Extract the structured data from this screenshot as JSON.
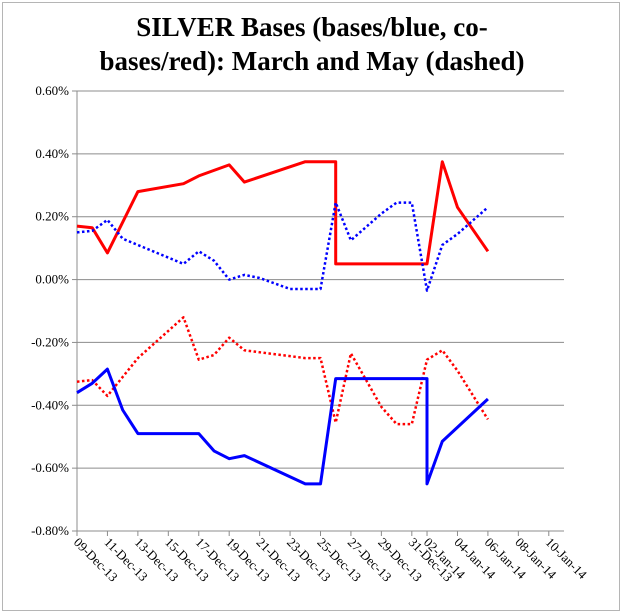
{
  "chart_data": {
    "type": "line",
    "title_lines": [
      "SILVER Bases (bases/blue, co-",
      "bases/red): March and May (dashed)"
    ],
    "x_tick_labels": [
      "09-Dec-13",
      "11-Dec-13",
      "13-Dec-13",
      "15-Dec-13",
      "17-Dec-13",
      "19-Dec-13",
      "21-Dec-13",
      "23-Dec-13",
      "25-Dec-13",
      "27-Dec-13",
      "29-Dec-13",
      "31-Dec-13",
      "02-Jan-14",
      "04-Jan-14",
      "06-Jan-14",
      "08-Jan-14",
      "10-Jan-14"
    ],
    "x_range_days": [
      0,
      32
    ],
    "y_tick_labels": [
      "0.60%",
      "0.40%",
      "0.20%",
      "0.00%",
      "-0.20%",
      "-0.40%",
      "-0.60%",
      "-0.80%"
    ],
    "ylim": [
      -0.8,
      0.6
    ],
    "y_ticks": [
      0.6,
      0.4,
      0.2,
      0.0,
      -0.2,
      -0.4,
      -0.6,
      -0.8
    ],
    "grid": "horizontal",
    "legend": "none",
    "series": [
      {
        "color": "#ff0000",
        "style": "solid",
        "x": [
          "09-Dec-13",
          "10-Dec-13",
          "11-Dec-13",
          "13-Dec-13",
          "16-Dec-13",
          "17-Dec-13",
          "19-Dec-13",
          "20-Dec-13",
          "24-Dec-13",
          "26-Dec-13",
          "26-Dec-13",
          "02-Jan-14",
          "03-Jan-14",
          "04-Jan-14",
          "06-Jan-14"
        ],
        "y": [
          0.17,
          0.165,
          0.085,
          0.28,
          0.305,
          0.33,
          0.365,
          0.31,
          0.375,
          0.375,
          0.05,
          0.05,
          0.375,
          0.23,
          0.09
        ]
      },
      {
        "color": "#0000ff",
        "style": "dotted",
        "x": [
          "09-Dec-13",
          "10-Dec-13",
          "11-Dec-13",
          "12-Dec-13",
          "14-Dec-13",
          "16-Dec-13",
          "17-Dec-13",
          "18-Dec-13",
          "19-Dec-13",
          "20-Dec-13",
          "21-Dec-13",
          "23-Dec-13",
          "25-Dec-13",
          "26-Dec-13",
          "27-Dec-13",
          "29-Dec-13",
          "30-Dec-13",
          "01-Jan-14",
          "02-Jan-14",
          "03-Jan-14",
          "04-Jan-14",
          "06-Jan-14"
        ],
        "y": [
          0.15,
          0.155,
          0.19,
          0.13,
          0.09,
          0.05,
          0.09,
          0.06,
          0.0,
          0.015,
          0.005,
          -0.03,
          -0.03,
          0.245,
          0.125,
          0.21,
          0.245,
          0.245,
          -0.035,
          0.11,
          0.145,
          0.23
        ]
      },
      {
        "color": "#ff0000",
        "style": "dotted",
        "x": [
          "09-Dec-13",
          "10-Dec-13",
          "11-Dec-13",
          "13-Dec-13",
          "16-Dec-13",
          "17-Dec-13",
          "18-Dec-13",
          "19-Dec-13",
          "20-Dec-13",
          "24-Dec-13",
          "25-Dec-13",
          "26-Dec-13",
          "27-Dec-13",
          "29-Dec-13",
          "30-Dec-13",
          "01-Jan-14",
          "02-Jan-14",
          "03-Jan-14",
          "04-Jan-14",
          "06-Jan-14"
        ],
        "y": [
          -0.325,
          -0.32,
          -0.37,
          -0.25,
          -0.12,
          -0.255,
          -0.24,
          -0.185,
          -0.225,
          -0.25,
          -0.25,
          -0.455,
          -0.235,
          -0.405,
          -0.46,
          -0.46,
          -0.255,
          -0.225,
          -0.29,
          -0.445
        ]
      },
      {
        "color": "#0000ff",
        "style": "solid",
        "x": [
          "09-Dec-13",
          "10-Dec-13",
          "11-Dec-13",
          "12-Dec-13",
          "13-Dec-13",
          "16-Dec-13",
          "17-Dec-13",
          "18-Dec-13",
          "19-Dec-13",
          "20-Dec-13",
          "24-Dec-13",
          "25-Dec-13",
          "26-Dec-13",
          "02-Jan-14",
          "02-Jan-14",
          "03-Jan-14",
          "06-Jan-14"
        ],
        "y": [
          -0.36,
          -0.33,
          -0.285,
          -0.415,
          -0.49,
          -0.49,
          -0.49,
          -0.545,
          -0.57,
          -0.56,
          -0.65,
          -0.65,
          -0.315,
          -0.315,
          -0.65,
          -0.515,
          -0.38
        ]
      }
    ]
  }
}
